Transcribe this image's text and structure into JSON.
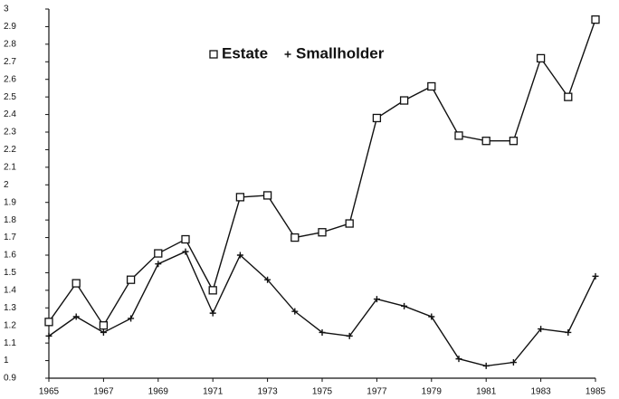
{
  "chart_data": {
    "type": "line",
    "x": [
      1965,
      1966,
      1967,
      1968,
      1969,
      1970,
      1971,
      1972,
      1973,
      1974,
      1975,
      1976,
      1977,
      1978,
      1979,
      1980,
      1981,
      1982,
      1983,
      1984,
      1985
    ],
    "series": [
      {
        "name": "Estate",
        "color": "#111111",
        "marker": "square",
        "values": [
          1.22,
          1.44,
          1.2,
          1.46,
          1.61,
          1.69,
          1.4,
          1.93,
          1.94,
          1.7,
          1.73,
          1.78,
          2.38,
          2.48,
          2.56,
          2.28,
          2.25,
          2.25,
          2.72,
          2.5,
          2.94
        ]
      },
      {
        "name": "Smallholder",
        "color": "#111111",
        "marker": "plus",
        "values": [
          1.14,
          1.25,
          1.16,
          1.24,
          1.55,
          1.62,
          1.27,
          1.6,
          1.46,
          1.28,
          1.16,
          1.14,
          1.35,
          1.31,
          1.25,
          1.01,
          0.97,
          0.99,
          1.18,
          1.16,
          1.48
        ]
      }
    ],
    "xlim": [
      1965,
      1985
    ],
    "xticks": [
      1965,
      1967,
      1969,
      1971,
      1973,
      1975,
      1977,
      1979,
      1981,
      1983,
      1985
    ],
    "ylim": [
      0.9,
      3
    ],
    "yticks": [
      0.9,
      1,
      1.1,
      1.2,
      1.3,
      1.4,
      1.5,
      1.6,
      1.7,
      1.8,
      1.9,
      2,
      2.1,
      2.2,
      2.3,
      2.4,
      2.5,
      2.6,
      2.7,
      2.8,
      2.9,
      3
    ],
    "grid": false
  }
}
